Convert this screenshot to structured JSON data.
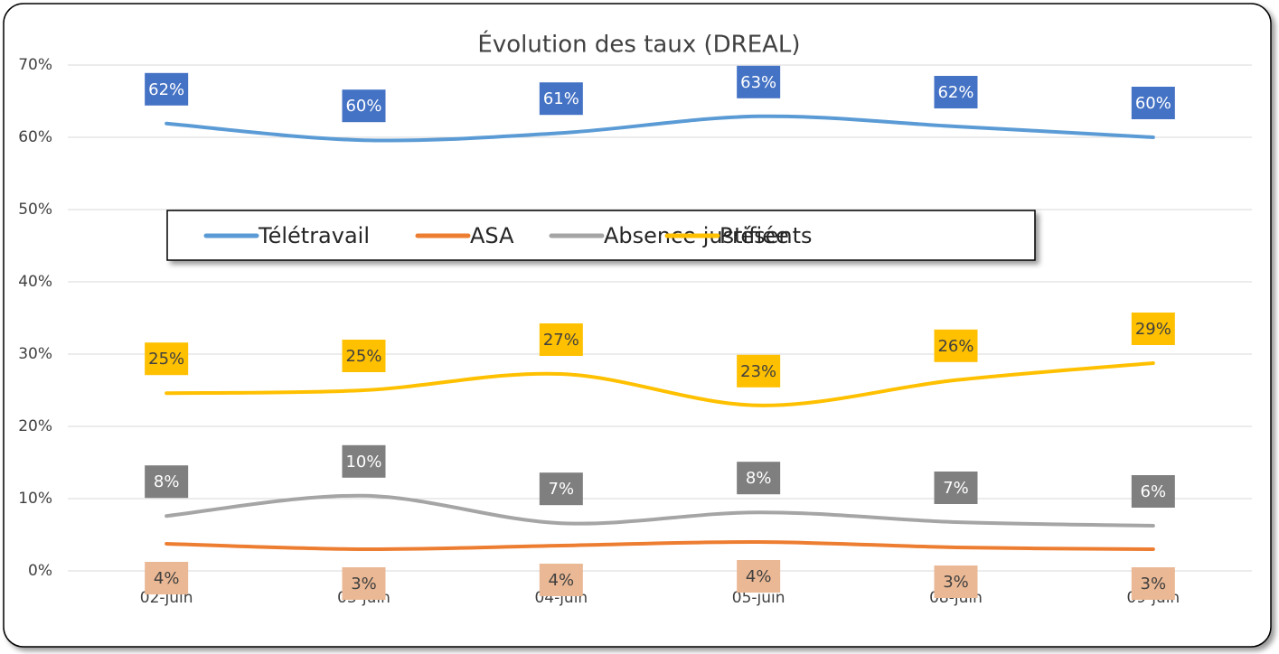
{
  "chart_data": {
    "type": "line",
    "title": "Évolution des taux (DREAL)",
    "categories": [
      "02-juin",
      "03-juin",
      "04-juin",
      "05-juin",
      "08-juin",
      "09-juin"
    ],
    "series": [
      {
        "name": "Télétravail",
        "color": "#5b9bd5",
        "label_color": "#4472c4",
        "values": [
          61.9,
          59.6,
          60.6,
          62.9,
          61.5,
          60.0
        ],
        "value_labels": [
          "62%",
          "60%",
          "61%",
          "63%",
          "62%",
          "60%"
        ]
      },
      {
        "name": "ASA",
        "color": "#ed7d31",
        "label_color": "#eab894",
        "values": [
          3.75,
          3.0,
          3.5,
          4.0,
          3.25,
          3.0
        ],
        "value_labels": [
          "4%",
          "3%",
          "4%",
          "4%",
          "3%",
          "3%"
        ]
      },
      {
        "name": "Absence justifiée",
        "color": "#a5a5a5",
        "label_color": "#7f7f7f",
        "values": [
          7.6,
          10.4,
          6.6,
          8.1,
          6.75,
          6.25
        ],
        "value_labels": [
          "8%",
          "10%",
          "7%",
          "8%",
          "7%",
          "6%"
        ]
      },
      {
        "name": "Présents",
        "color": "#ffc000",
        "label_color": "#ffc000",
        "values": [
          24.6,
          25.0,
          27.25,
          22.9,
          26.4,
          28.75
        ],
        "value_labels": [
          "25%",
          "25%",
          "27%",
          "23%",
          "26%",
          "29%"
        ]
      }
    ],
    "ylim": [
      0,
      70
    ],
    "yticks": [
      {
        "value": 0,
        "label": "0%"
      },
      {
        "value": 10,
        "label": "10%"
      },
      {
        "value": 20,
        "label": "20%"
      },
      {
        "value": 30,
        "label": "30%"
      },
      {
        "value": 40,
        "label": "40%"
      },
      {
        "value": 50,
        "label": "50%"
      },
      {
        "value": 60,
        "label": "60%"
      },
      {
        "value": 70,
        "label": "70%"
      }
    ],
    "grid": true,
    "smooth": true
  }
}
